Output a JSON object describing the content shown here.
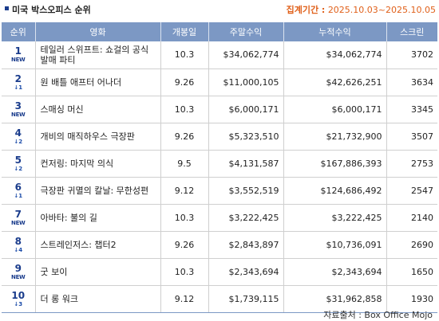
{
  "header": {
    "title": "미국 박스오피스 순위",
    "period_label": "집계기간 :",
    "period_value": "2025.10.03~2025.10.05"
  },
  "columns": [
    "순위",
    "영화",
    "개봉일",
    "주말수익",
    "누적수익",
    "스크린"
  ],
  "rows": [
    {
      "rank": "1",
      "change": "NEW",
      "movie": "테일러 스위프트: 쇼걸의 공식 발매 파티",
      "release": "10.3",
      "weekend": "$34,062,774",
      "total": "$34,062,774",
      "screens": "3702"
    },
    {
      "rank": "2",
      "change": "↓1",
      "movie": "원 배틀 애프터 어나더",
      "release": "9.26",
      "weekend": "$11,000,105",
      "total": "$42,626,251",
      "screens": "3634"
    },
    {
      "rank": "3",
      "change": "NEW",
      "movie": "스매싱 머신",
      "release": "10.3",
      "weekend": "$6,000,171",
      "total": "$6,000,171",
      "screens": "3345"
    },
    {
      "rank": "4",
      "change": "↓2",
      "movie": "개비의 매직하우스 극장판",
      "release": "9.26",
      "weekend": "$5,323,510",
      "total": "$21,732,900",
      "screens": "3507"
    },
    {
      "rank": "5",
      "change": "↓2",
      "movie": "컨저링: 마지막 의식",
      "release": "9.5",
      "weekend": "$4,131,587",
      "total": "$167,886,393",
      "screens": "2753"
    },
    {
      "rank": "6",
      "change": "↓1",
      "movie": "극장판 귀멸의 칼날: 무한성편",
      "release": "9.12",
      "weekend": "$3,552,519",
      "total": "$124,686,492",
      "screens": "2547"
    },
    {
      "rank": "7",
      "change": "NEW",
      "movie": "아바타: 불의 길",
      "release": "10.3",
      "weekend": "$3,222,425",
      "total": "$3,222,425",
      "screens": "2140"
    },
    {
      "rank": "8",
      "change": "↓4",
      "movie": "스트레인저스: 챕터2",
      "release": "9.26",
      "weekend": "$2,843,897",
      "total": "$10,736,091",
      "screens": "2690"
    },
    {
      "rank": "9",
      "change": "NEW",
      "movie": "굿 보이",
      "release": "10.3",
      "weekend": "$2,343,694",
      "total": "$2,343,694",
      "screens": "1650"
    },
    {
      "rank": "10",
      "change": "↓3",
      "movie": "더 롱 워크",
      "release": "9.12",
      "weekend": "$1,739,115",
      "total": "$31,962,858",
      "screens": "1930"
    }
  ],
  "source": "자료출처 : Box Office Mojo",
  "colors": {
    "header_bg": "#7c98c4",
    "rank_blue": "#1a3c8c",
    "period_orange": "#e0601a"
  }
}
